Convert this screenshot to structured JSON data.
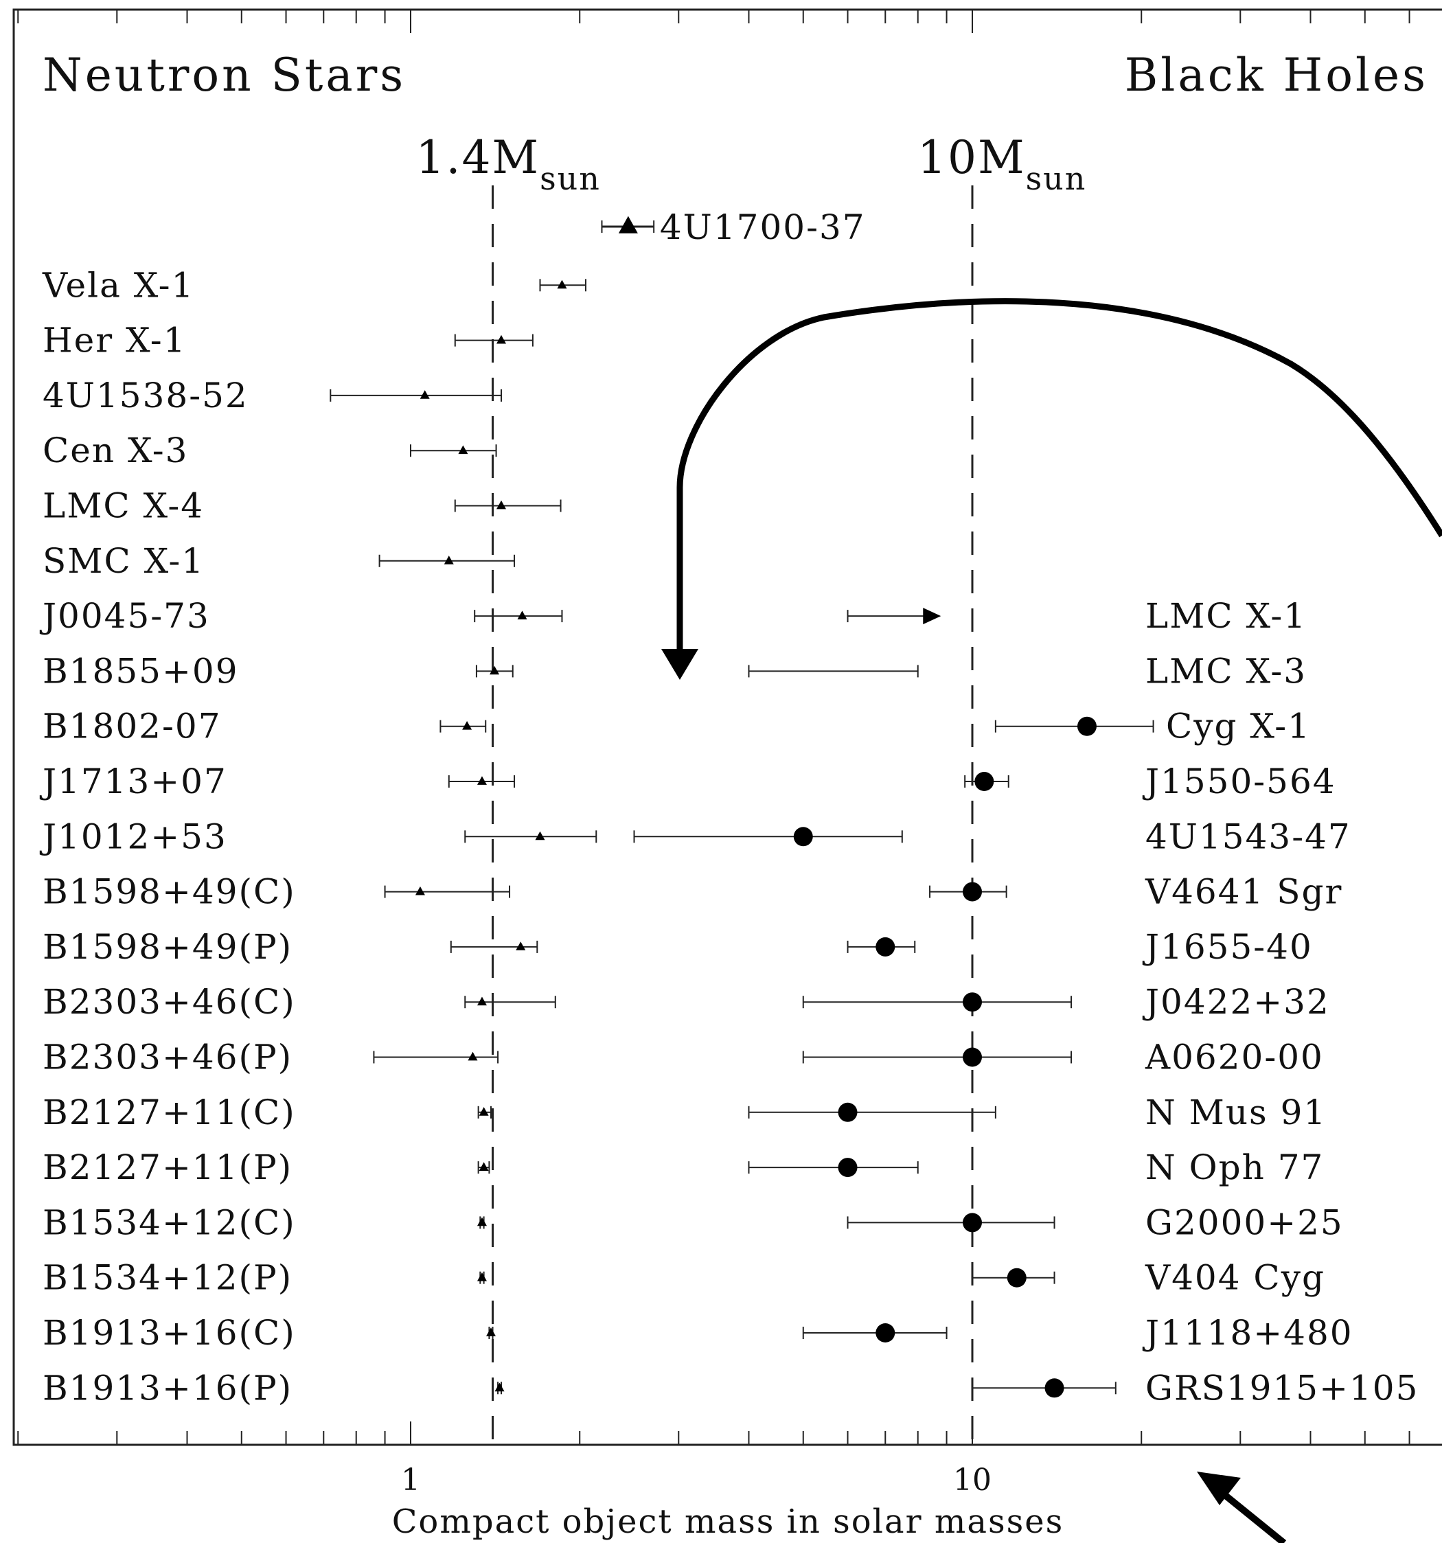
{
  "chart_data": {
    "type": "scatter",
    "xscale": "log",
    "xlim": [
      0.2,
      40
    ],
    "xlabel": "Compact object mass in solar masses",
    "x_tick_labels": [
      "1",
      "10"
    ],
    "grid": false,
    "section_labels": {
      "left": "Neutron Stars",
      "right": "Black Holes"
    },
    "reference_lines": [
      {
        "value": 1.4,
        "label_main": "1.4M",
        "label_sub": "sun"
      },
      {
        "value": 10,
        "label_main": "10M",
        "label_sub": "sun"
      }
    ],
    "series": [
      {
        "name": "Neutron Stars",
        "marker": "triangle",
        "points": [
          {
            "name": "4U1700-37",
            "mass": 2.44,
            "lo": 2.19,
            "hi": 2.71
          },
          {
            "name": "Vela X-1",
            "mass": 1.86,
            "lo": 1.7,
            "hi": 2.05
          },
          {
            "name": "Her X-1",
            "mass": 1.45,
            "lo": 1.2,
            "hi": 1.65
          },
          {
            "name": "4U1538-52",
            "mass": 1.06,
            "lo": 0.72,
            "hi": 1.45
          },
          {
            "name": "Cen X-3",
            "mass": 1.24,
            "lo": 1.0,
            "hi": 1.42
          },
          {
            "name": "LMC X-4",
            "mass": 1.45,
            "lo": 1.2,
            "hi": 1.85
          },
          {
            "name": "SMC X-1",
            "mass": 1.17,
            "lo": 0.88,
            "hi": 1.53
          },
          {
            "name": "J0045-73",
            "mass": 1.58,
            "lo": 1.3,
            "hi": 1.86
          },
          {
            "name": "B1855+09",
            "mass": 1.41,
            "lo": 1.31,
            "hi": 1.52
          },
          {
            "name": "B1802-07",
            "mass": 1.26,
            "lo": 1.13,
            "hi": 1.36
          },
          {
            "name": "J1713+07",
            "mass": 1.34,
            "lo": 1.17,
            "hi": 1.53
          },
          {
            "name": "J1012+53",
            "mass": 1.7,
            "lo": 1.25,
            "hi": 2.14
          },
          {
            "name": "B1598+49(C)",
            "mass": 1.04,
            "lo": 0.9,
            "hi": 1.5
          },
          {
            "name": "B1598+49(P)",
            "mass": 1.57,
            "lo": 1.18,
            "hi": 1.68
          },
          {
            "name": "B2303+46(C)",
            "mass": 1.34,
            "lo": 1.25,
            "hi": 1.81
          },
          {
            "name": "B2303+46(P)",
            "mass": 1.29,
            "lo": 0.86,
            "hi": 1.43
          },
          {
            "name": "B2127+11(C)",
            "mass": 1.35,
            "lo": 1.32,
            "hi": 1.39
          },
          {
            "name": "B2127+11(P)",
            "mass": 1.35,
            "lo": 1.32,
            "hi": 1.38
          },
          {
            "name": "B1534+12(C)",
            "mass": 1.34,
            "lo": 1.33,
            "hi": 1.35
          },
          {
            "name": "B1534+12(P)",
            "mass": 1.34,
            "lo": 1.33,
            "hi": 1.35
          },
          {
            "name": "B1913+16(C)",
            "mass": 1.39,
            "lo": 1.38,
            "hi": 1.4
          },
          {
            "name": "B1913+16(P)",
            "mass": 1.44,
            "lo": 1.43,
            "hi": 1.45
          }
        ]
      },
      {
        "name": "Black Holes",
        "marker": "circle",
        "points": [
          {
            "name": "LMC X-1",
            "mass": 8.5,
            "lo": 6.0,
            "hi": 8.5,
            "lower_limit": true
          },
          {
            "name": "LMC X-3",
            "lo": 4.0,
            "hi": 8.0,
            "range_only": true
          },
          {
            "name": "Cyg X-1",
            "mass": 16,
            "lo": 11,
            "hi": 21
          },
          {
            "name": "J1550-564",
            "mass": 10.5,
            "lo": 9.7,
            "hi": 11.6
          },
          {
            "name": "4U1543-47",
            "mass": 5.0,
            "lo": 2.5,
            "hi": 7.5
          },
          {
            "name": "V4641 Sgr",
            "mass": 10.0,
            "lo": 8.4,
            "hi": 11.5
          },
          {
            "name": "J1655-40",
            "mass": 7.0,
            "lo": 6.0,
            "hi": 7.9
          },
          {
            "name": "J0422+32",
            "mass": 10.0,
            "lo": 5.0,
            "hi": 15.0
          },
          {
            "name": "A0620-00",
            "mass": 10.0,
            "lo": 5.0,
            "hi": 15.0
          },
          {
            "name": "N Mus 91",
            "mass": 6.0,
            "lo": 4.0,
            "hi": 11.0
          },
          {
            "name": "N Oph 77",
            "mass": 6.0,
            "lo": 4.0,
            "hi": 8.0
          },
          {
            "name": "G2000+25",
            "mass": 10.0,
            "lo": 6.0,
            "hi": 14.0
          },
          {
            "name": "V404 Cyg",
            "mass": 12.0,
            "lo": 10.0,
            "hi": 14.0
          },
          {
            "name": "J1118+480",
            "mass": 7.0,
            "lo": 5.0,
            "hi": 9.0
          },
          {
            "name": "GRS1915+105",
            "mass": 14.0,
            "lo": 10.0,
            "hi": 18.0
          }
        ]
      }
    ]
  }
}
